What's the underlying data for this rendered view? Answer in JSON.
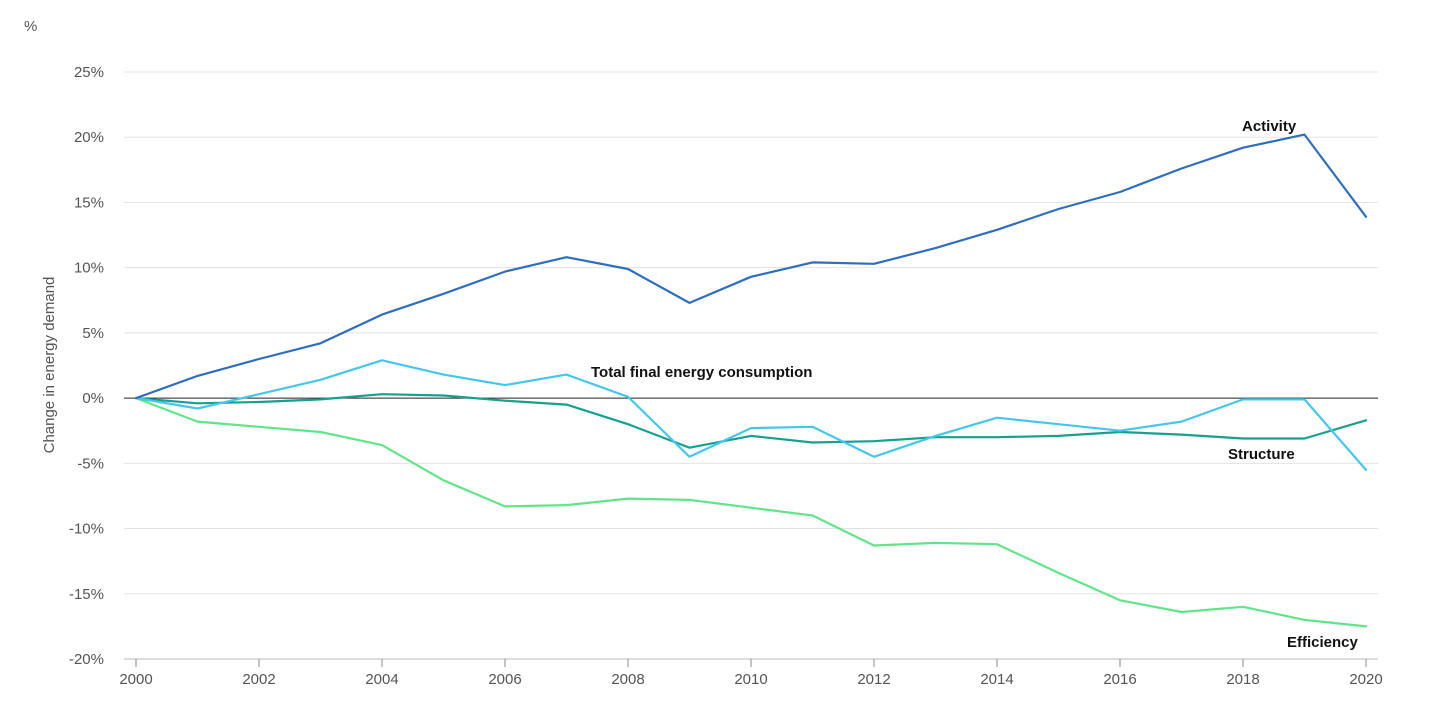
{
  "unit_label": "%",
  "chart_data": {
    "type": "line",
    "title": "",
    "ylabel": "Change in energy demand",
    "xlabel": "",
    "x": [
      2000,
      2001,
      2002,
      2003,
      2004,
      2005,
      2006,
      2007,
      2008,
      2009,
      2010,
      2011,
      2012,
      2013,
      2014,
      2015,
      2016,
      2017,
      2018,
      2019,
      2020
    ],
    "xticks": [
      "2000",
      "2002",
      "2004",
      "2006",
      "2008",
      "2010",
      "2012",
      "2014",
      "2016",
      "2018",
      "2020"
    ],
    "xlim": [
      2000,
      2020
    ],
    "ylim": [
      -20,
      25
    ],
    "yticks": [
      25,
      20,
      15,
      10,
      5,
      0,
      -5,
      -10,
      -15,
      -20
    ],
    "ytick_labels": [
      "25%",
      "20%",
      "15%",
      "10%",
      "5%",
      "0%",
      "-5%",
      "-10%",
      "-15%",
      "-20%"
    ],
    "grid": true,
    "legend": "inline labels",
    "series": [
      {
        "name": "Activity",
        "color": "#2f6ebf",
        "values": [
          0,
          1.7,
          3.0,
          4.2,
          6.4,
          8.0,
          9.7,
          10.8,
          9.9,
          7.3,
          9.3,
          10.4,
          10.3,
          11.5,
          12.9,
          14.5,
          15.8,
          17.6,
          19.2,
          20.2,
          13.9
        ]
      },
      {
        "name": "Total final energy consumption",
        "color": "#45c7ea",
        "values": [
          0,
          -0.8,
          0.3,
          1.4,
          2.9,
          1.8,
          1.0,
          1.8,
          0.1,
          -4.5,
          -2.3,
          -2.2,
          -4.5,
          -2.9,
          -1.5,
          -2.0,
          -2.5,
          -1.8,
          -0.1,
          -0.1,
          -5.5
        ]
      },
      {
        "name": "Structure",
        "color": "#15a090",
        "values": [
          0,
          -0.4,
          -0.3,
          -0.1,
          0.3,
          0.2,
          -0.2,
          -0.5,
          -2.0,
          -3.8,
          -2.9,
          -3.4,
          -3.3,
          -3.0,
          -3.0,
          -2.9,
          -2.6,
          -2.8,
          -3.1,
          -3.1,
          -1.7
        ]
      },
      {
        "name": "Efficiency",
        "color": "#61e48a",
        "values": [
          0,
          -1.8,
          -2.2,
          -2.6,
          -3.6,
          -6.3,
          -8.3,
          -8.2,
          -7.7,
          -7.8,
          -8.4,
          -9.0,
          -11.3,
          -11.1,
          -11.2,
          -13.4,
          -15.5,
          -16.4,
          -16.0,
          -17.0,
          -17.5
        ]
      }
    ]
  }
}
